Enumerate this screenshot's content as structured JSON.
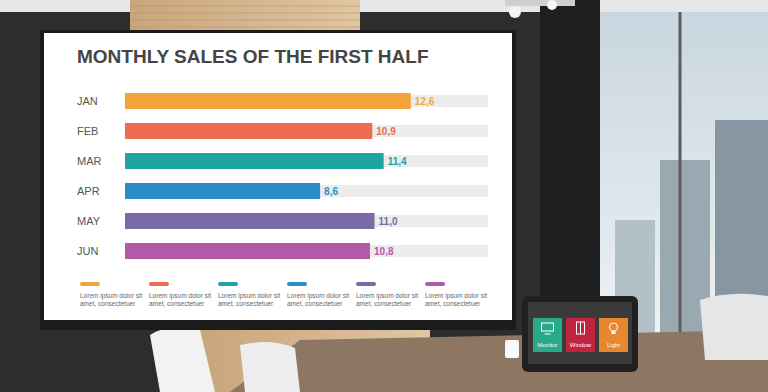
{
  "chart_data": {
    "type": "bar",
    "orientation": "horizontal",
    "title": "MONTHLY SALES OF THE FIRST HALF",
    "categories": [
      "JAN",
      "FEB",
      "MAR",
      "APR",
      "MAY",
      "JUN"
    ],
    "values": [
      12.6,
      10.9,
      11.4,
      8.6,
      11.0,
      10.8
    ],
    "value_labels": [
      "12,6",
      "10,9",
      "11,4",
      "8,6",
      "11,0",
      "10,8"
    ],
    "colors": [
      "#f4a53a",
      "#ef6b52",
      "#1fa3a5",
      "#2a8fc9",
      "#7a6aa8",
      "#b05aa8"
    ],
    "xlim": [
      0,
      16
    ],
    "tick_labels": false,
    "grid": false,
    "data_labels": true,
    "legend_labels": [
      [
        "Lorem ipsum dolor sit",
        "amet, consectetuer"
      ],
      [
        "Lorem ipsum dolor sit",
        "amet, consectetuer"
      ],
      [
        "Lorem ipsum dolor sit",
        "amet, consectetuer"
      ],
      [
        "Lorem ipsum dolor sit",
        "amet, consectetuer"
      ],
      [
        "Lorem ipsum dolor sit",
        "amet, consectetuer"
      ],
      [
        "Lorem ipsum dolor sit",
        "amet, consectetuer"
      ]
    ]
  },
  "tablet": {
    "buttons": [
      "Monitor",
      "Window",
      "Light"
    ]
  }
}
